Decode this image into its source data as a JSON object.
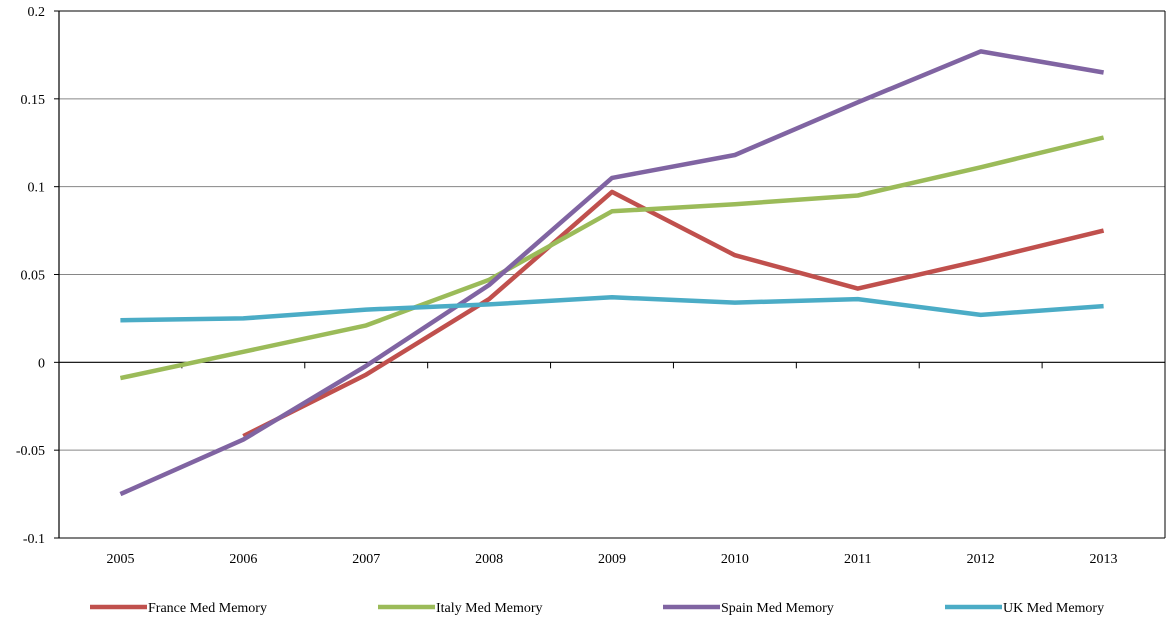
{
  "chart_data": {
    "type": "line",
    "title": "",
    "xlabel": "",
    "ylabel": "",
    "categories": [
      "2005",
      "2006",
      "2007",
      "2008",
      "2009",
      "2010",
      "2011",
      "2012",
      "2013"
    ],
    "ylim": [
      -0.1,
      0.2
    ],
    "yticks": [
      -0.1,
      -0.05,
      0,
      0.05,
      0.1,
      0.15,
      0.2
    ],
    "ytick_labels": [
      "-0.1",
      "-0.05",
      "0",
      "0.05",
      "0.1",
      "0.15",
      "0.2"
    ],
    "grid": true,
    "legend_position": "bottom",
    "series": [
      {
        "name": "France Med Memory",
        "color": "#c0504d",
        "values": [
          null,
          -0.042,
          -0.007,
          0.036,
          0.097,
          0.061,
          0.042,
          0.058,
          0.075
        ]
      },
      {
        "name": "Italy Med Memory",
        "color": "#9bbb59",
        "values": [
          -0.009,
          0.006,
          0.021,
          0.047,
          0.086,
          0.09,
          0.095,
          0.111,
          0.128
        ]
      },
      {
        "name": "Spain Med Memory",
        "color": "#8064a2",
        "values": [
          -0.075,
          -0.044,
          -0.002,
          0.044,
          0.105,
          0.118,
          0.148,
          0.177,
          0.165
        ]
      },
      {
        "name": "UK Med Memory",
        "color": "#4bacc6",
        "values": [
          0.024,
          0.025,
          0.03,
          0.033,
          0.037,
          0.034,
          0.036,
          0.027,
          0.032
        ]
      }
    ]
  }
}
